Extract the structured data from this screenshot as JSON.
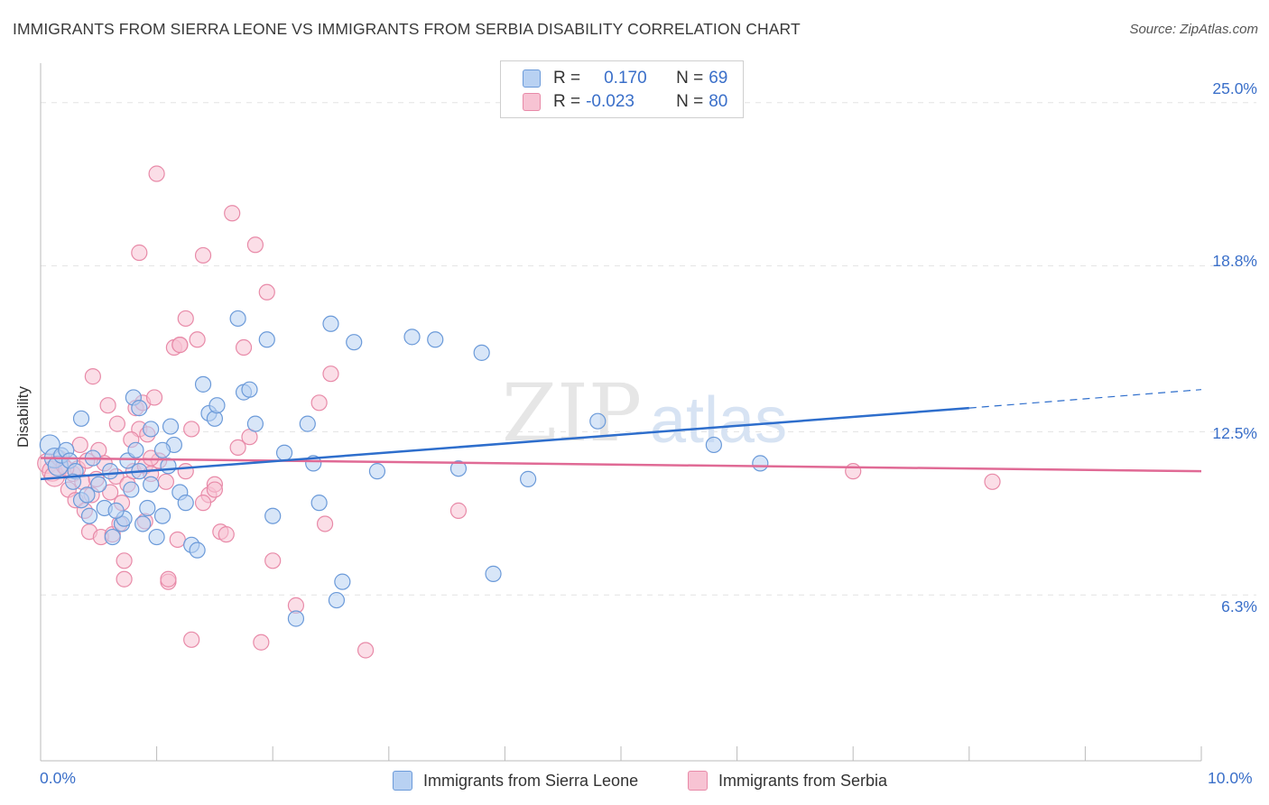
{
  "title": "IMMIGRANTS FROM SIERRA LEONE VS IMMIGRANTS FROM SERBIA DISABILITY CORRELATION CHART",
  "source": "Source: ZipAtlas.com",
  "watermark": {
    "zip": "ZIP",
    "atlas": "atlas"
  },
  "legend": {
    "series1": {
      "r_label": "R =",
      "r_value": "0.170",
      "n_label": "N =",
      "n_value": "69"
    },
    "series2": {
      "r_label": "R =",
      "r_value": "-0.023",
      "n_label": "N =",
      "n_value": "80"
    }
  },
  "colors": {
    "blue_fill": "#b8d1f2",
    "blue_stroke": "#6b9ad9",
    "blue_line": "#2e6ecc",
    "pink_fill": "#f7c3d3",
    "pink_stroke": "#e88aa8",
    "pink_line": "#e06a95",
    "axis_text": "#3a6fc9",
    "grid": "#e3e3e3"
  },
  "chart_data": {
    "type": "scatter",
    "title": "IMMIGRANTS FROM SIERRA LEONE VS IMMIGRANTS FROM SERBIA DISABILITY CORRELATION CHART",
    "xlabel": "",
    "ylabel": "Disability",
    "xlim": [
      0,
      10
    ],
    "ylim": [
      0,
      26.5
    ],
    "x_tick_labels": {
      "left": "0.0%",
      "right": "10.0%"
    },
    "y_ticks": [
      {
        "value": 6.3,
        "label": "6.3%"
      },
      {
        "value": 12.5,
        "label": "12.5%"
      },
      {
        "value": 18.8,
        "label": "18.8%"
      },
      {
        "value": 25.0,
        "label": "25.0%"
      }
    ],
    "series": [
      {
        "name": "Immigrants from Sierra Leone",
        "color": "blue",
        "trend": {
          "x_solid": [
            0.0,
            8.0
          ],
          "y_solid": [
            10.7,
            13.4
          ],
          "x_dash": [
            8.0,
            10.0
          ],
          "y_dash": [
            13.4,
            14.1
          ]
        },
        "points": [
          [
            0.08,
            12.0
          ],
          [
            0.12,
            11.5
          ],
          [
            0.15,
            11.2
          ],
          [
            0.18,
            11.6
          ],
          [
            0.22,
            11.8
          ],
          [
            0.25,
            11.4
          ],
          [
            0.3,
            11.0
          ],
          [
            0.28,
            10.6
          ],
          [
            0.35,
            9.9
          ],
          [
            0.4,
            10.1
          ],
          [
            0.45,
            11.5
          ],
          [
            0.5,
            10.5
          ],
          [
            0.42,
            9.3
          ],
          [
            0.55,
            9.6
          ],
          [
            0.6,
            11.0
          ],
          [
            0.62,
            8.5
          ],
          [
            0.7,
            9.0
          ],
          [
            0.72,
            9.2
          ],
          [
            0.75,
            11.4
          ],
          [
            0.78,
            10.3
          ],
          [
            0.82,
            11.8
          ],
          [
            0.85,
            11.0
          ],
          [
            0.88,
            9.0
          ],
          [
            0.92,
            9.6
          ],
          [
            0.95,
            10.5
          ],
          [
            1.0,
            8.5
          ],
          [
            1.05,
            9.3
          ],
          [
            1.1,
            11.2
          ],
          [
            1.15,
            12.0
          ],
          [
            1.2,
            10.2
          ],
          [
            1.25,
            9.8
          ],
          [
            1.3,
            8.2
          ],
          [
            1.35,
            8.0
          ],
          [
            1.4,
            14.3
          ],
          [
            1.45,
            13.2
          ],
          [
            1.5,
            13.0
          ],
          [
            0.8,
            13.8
          ],
          [
            0.85,
            13.4
          ],
          [
            1.05,
            11.8
          ],
          [
            1.12,
            12.7
          ],
          [
            0.65,
            9.5
          ],
          [
            0.95,
            12.6
          ],
          [
            1.52,
            13.5
          ],
          [
            1.7,
            16.8
          ],
          [
            1.75,
            14.0
          ],
          [
            1.8,
            14.1
          ],
          [
            1.85,
            12.8
          ],
          [
            1.95,
            16.0
          ],
          [
            2.0,
            9.3
          ],
          [
            2.1,
            11.7
          ],
          [
            2.2,
            5.4
          ],
          [
            2.3,
            12.8
          ],
          [
            2.35,
            11.3
          ],
          [
            2.4,
            9.8
          ],
          [
            2.5,
            16.6
          ],
          [
            2.55,
            6.1
          ],
          [
            2.6,
            6.8
          ],
          [
            2.7,
            15.9
          ],
          [
            2.9,
            11.0
          ],
          [
            3.2,
            16.1
          ],
          [
            3.4,
            16.0
          ],
          [
            3.6,
            11.1
          ],
          [
            3.8,
            15.5
          ],
          [
            3.9,
            7.1
          ],
          [
            4.2,
            10.7
          ],
          [
            4.8,
            12.9
          ],
          [
            5.8,
            12.0
          ],
          [
            6.2,
            11.3
          ],
          [
            0.35,
            13.0
          ]
        ]
      },
      {
        "name": "Immigrants from Serbia",
        "color": "pink",
        "trend": {
          "x": [
            0.0,
            10.0
          ],
          "y": [
            11.5,
            11.0
          ]
        },
        "points": [
          [
            0.06,
            11.3
          ],
          [
            0.1,
            11.0
          ],
          [
            0.12,
            10.8
          ],
          [
            0.16,
            11.5
          ],
          [
            0.2,
            11.2
          ],
          [
            0.24,
            10.3
          ],
          [
            0.28,
            10.9
          ],
          [
            0.32,
            11.1
          ],
          [
            0.36,
            10.6
          ],
          [
            0.4,
            11.4
          ],
          [
            0.44,
            10.1
          ],
          [
            0.48,
            10.7
          ],
          [
            0.3,
            9.9
          ],
          [
            0.38,
            9.5
          ],
          [
            0.5,
            11.8
          ],
          [
            0.55,
            11.3
          ],
          [
            0.6,
            10.2
          ],
          [
            0.65,
            10.8
          ],
          [
            0.7,
            9.8
          ],
          [
            0.75,
            10.5
          ],
          [
            0.8,
            11.0
          ],
          [
            0.85,
            12.6
          ],
          [
            0.9,
            11.2
          ],
          [
            0.95,
            10.9
          ],
          [
            0.42,
            8.7
          ],
          [
            0.52,
            8.5
          ],
          [
            0.62,
            8.6
          ],
          [
            0.68,
            9.0
          ],
          [
            0.72,
            7.6
          ],
          [
            0.78,
            12.2
          ],
          [
            0.82,
            13.4
          ],
          [
            0.88,
            13.6
          ],
          [
            0.92,
            12.4
          ],
          [
            0.98,
            13.8
          ],
          [
            1.02,
            11.4
          ],
          [
            1.08,
            10.6
          ],
          [
            0.58,
            13.5
          ],
          [
            0.45,
            14.6
          ],
          [
            1.1,
            6.8
          ],
          [
            1.15,
            15.7
          ],
          [
            1.2,
            15.8
          ],
          [
            1.25,
            16.8
          ],
          [
            1.3,
            4.6
          ],
          [
            1.35,
            16.0
          ],
          [
            1.4,
            19.2
          ],
          [
            1.45,
            10.1
          ],
          [
            1.5,
            10.5
          ],
          [
            1.55,
            8.7
          ],
          [
            1.6,
            8.6
          ],
          [
            1.65,
            20.8
          ],
          [
            1.7,
            11.9
          ],
          [
            1.75,
            15.7
          ],
          [
            1.8,
            12.3
          ],
          [
            1.85,
            19.6
          ],
          [
            1.9,
            4.5
          ],
          [
            1.95,
            17.8
          ],
          [
            2.0,
            7.6
          ],
          [
            2.2,
            5.9
          ],
          [
            2.4,
            13.6
          ],
          [
            2.45,
            9.0
          ],
          [
            2.5,
            14.7
          ],
          [
            2.8,
            4.2
          ],
          [
            3.6,
            9.5
          ],
          [
            0.85,
            19.3
          ],
          [
            1.0,
            22.3
          ],
          [
            1.1,
            6.9
          ],
          [
            1.2,
            15.8
          ],
          [
            0.95,
            11.5
          ],
          [
            1.3,
            12.6
          ],
          [
            1.4,
            9.8
          ],
          [
            1.5,
            10.3
          ],
          [
            0.72,
            6.9
          ],
          [
            0.66,
            12.8
          ],
          [
            0.9,
            9.1
          ],
          [
            1.18,
            8.4
          ],
          [
            1.25,
            11.0
          ],
          [
            0.34,
            12.0
          ],
          [
            7.0,
            11.0
          ],
          [
            8.2,
            10.6
          ],
          [
            0.22,
            11.1
          ]
        ]
      }
    ]
  },
  "bottom_legend": {
    "series1_label": "Immigrants from Sierra Leone",
    "series2_label": "Immigrants from Serbia"
  }
}
